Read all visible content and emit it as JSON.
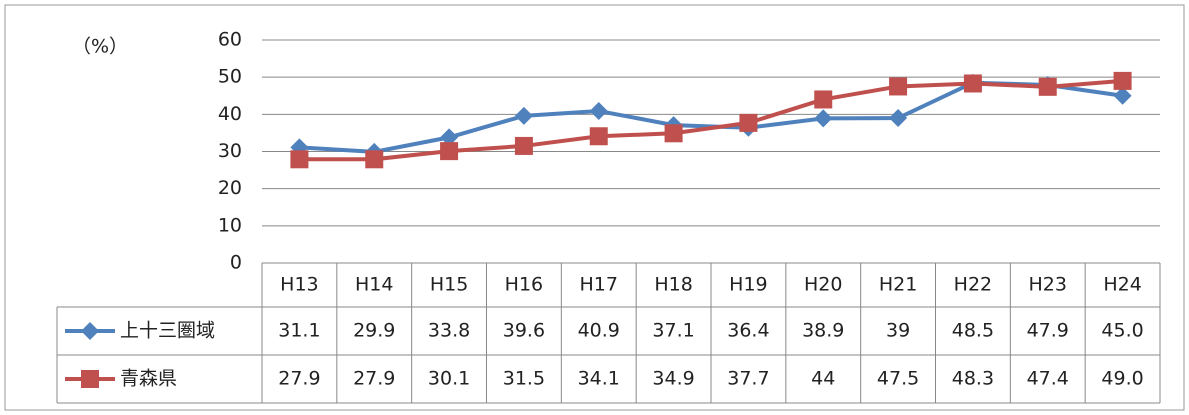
{
  "chart_data": {
    "type": "line",
    "y_label": "（%）",
    "categories": [
      "H13",
      "H14",
      "H15",
      "H16",
      "H17",
      "H18",
      "H19",
      "H20",
      "H21",
      "H22",
      "H23",
      "H24"
    ],
    "series": [
      {
        "name": "上十三圏域",
        "color": "#4f81bd",
        "marker": "diamond",
        "values": [
          31.1,
          29.9,
          33.8,
          39.6,
          40.9,
          37.1,
          36.4,
          38.9,
          39,
          48.5,
          47.9,
          45.0
        ],
        "value_labels": [
          "31.1",
          "29.9",
          "33.8",
          "39.6",
          "40.9",
          "37.1",
          "36.4",
          "38.9",
          "39",
          "48.5",
          "47.9",
          "45.0"
        ]
      },
      {
        "name": "青森県",
        "color": "#c0504d",
        "marker": "square",
        "values": [
          27.9,
          27.9,
          30.1,
          31.5,
          34.1,
          34.9,
          37.7,
          44,
          47.5,
          48.3,
          47.4,
          49.0
        ],
        "value_labels": [
          "27.9",
          "27.9",
          "30.1",
          "31.5",
          "34.1",
          "34.9",
          "37.7",
          "44",
          "47.5",
          "48.3",
          "47.4",
          "49.0"
        ]
      }
    ],
    "ylim": [
      0,
      60
    ],
    "yticks": [
      0,
      10,
      20,
      30,
      40,
      50,
      60
    ],
    "grid": true
  }
}
